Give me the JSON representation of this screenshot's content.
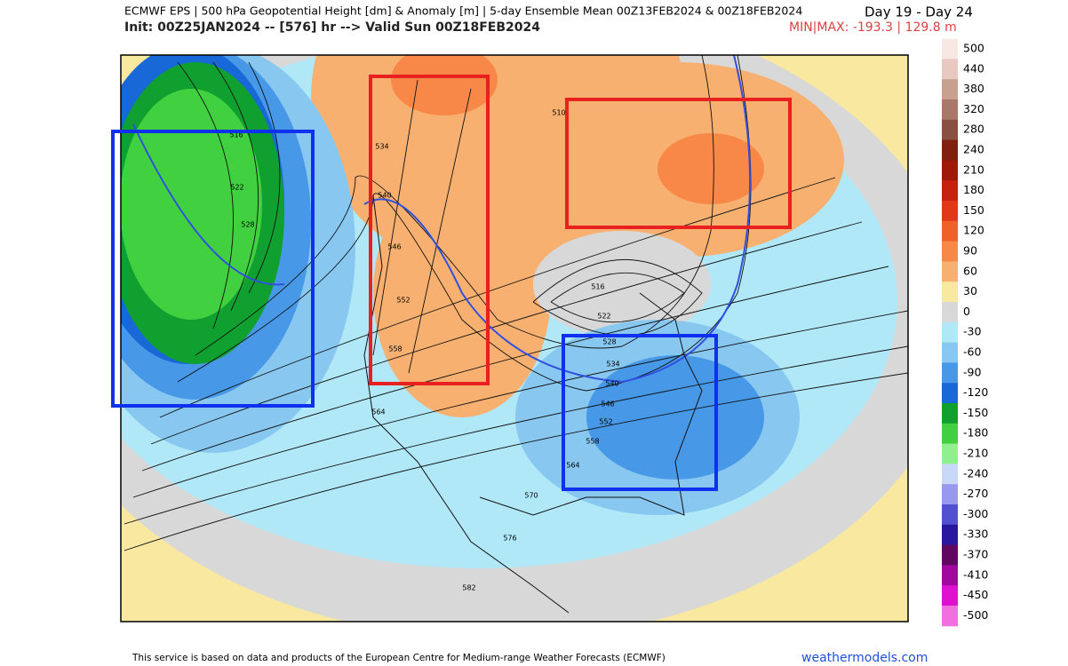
{
  "header": {
    "title": "ECMWF EPS | 500 hPa Geopotential Height [dm] & Anomaly [m] | 5-day Ensemble Mean 00Z13FEB2024 & 00Z18FEB2024",
    "period": "Day 19 - Day 24",
    "init": "Init: 00Z25JAN2024 -- [576] hr --> Valid Sun 00Z18FEB2024",
    "minmax": "MIN|MAX: -193.3 | 129.8 m"
  },
  "colorbar": {
    "labels": [
      500,
      440,
      380,
      320,
      280,
      240,
      210,
      180,
      150,
      120,
      90,
      60,
      30,
      0,
      -30,
      -60,
      -90,
      -120,
      -150,
      -180,
      -210,
      -240,
      -270,
      -300,
      -330,
      -370,
      -410,
      -450,
      -500
    ],
    "colors": [
      "#f8e8e4",
      "#e8c8c0",
      "#c8a090",
      "#a87868",
      "#885040",
      "#802010",
      "#a01808",
      "#c82010",
      "#e03818",
      "#f06028",
      "#f88848",
      "#f8b070",
      "#f8e8a0",
      "#d8d8d8",
      "#b0e8f8",
      "#88c8f0",
      "#4898e8",
      "#1868d8",
      "#10a030",
      "#40d040",
      "#90f090",
      "#c8d8f8",
      "#9898f0",
      "#5050d0",
      "#2818a0",
      "#600860",
      "#a008a0",
      "#e010d0",
      "#f070e0"
    ]
  },
  "map": {
    "contour_labels": [
      "510",
      "516",
      "522",
      "528",
      "534",
      "540",
      "546",
      "552",
      "558",
      "564",
      "570",
      "576",
      "582",
      "516",
      "522",
      "528",
      "534",
      "540",
      "546",
      "552",
      "558",
      "564"
    ]
  },
  "footer": {
    "notice": "This service is based on data and products of the European Centre for Medium-range Weather Forecasts (ECMWF)",
    "site": "weathermodels.com"
  }
}
